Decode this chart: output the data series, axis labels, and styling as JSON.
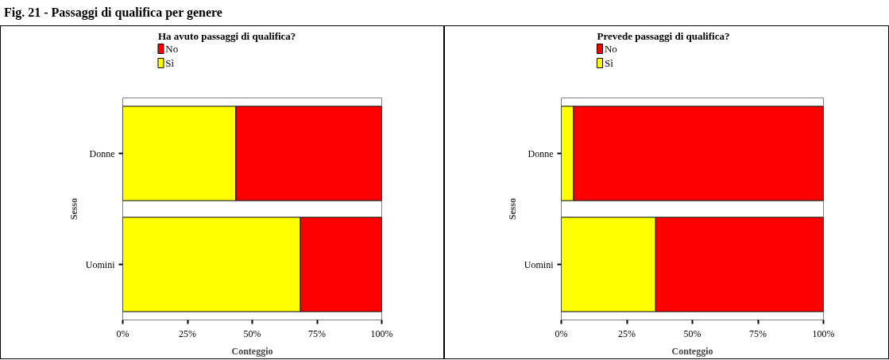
{
  "chart_data": [
    {
      "type": "bar",
      "title": "Fig. 21 - Passaggi di qualifica per genere",
      "orientation": "horizontal",
      "stacked": true,
      "legend_title": "Ha avuto passaggi di qualifica?",
      "legend": "top left",
      "categories": [
        "Donne",
        "Uomini"
      ],
      "xlabel": "Conteggio",
      "ylabel": "Sesso",
      "xlim": [
        0,
        100
      ],
      "xticks": [
        {
          "value": 0,
          "label": "0%"
        },
        {
          "value": 25,
          "label": "25%"
        },
        {
          "value": 50,
          "label": "50%"
        },
        {
          "value": 75,
          "label": "75%"
        },
        {
          "value": 100,
          "label": "100%"
        }
      ],
      "grid": false,
      "series": [
        {
          "name": "Sì",
          "color": "#ffff00",
          "values": [
            43.7,
            68.6
          ]
        },
        {
          "name": "No",
          "color": "#ff0000",
          "values": [
            56.3,
            31.4
          ]
        }
      ]
    },
    {
      "type": "bar",
      "orientation": "horizontal",
      "stacked": true,
      "legend_title": "Prevede passaggi di qualifica?",
      "legend": "top left",
      "categories": [
        "Donne",
        "Uomini"
      ],
      "xlabel": "Conteggio",
      "ylabel": "Sesso",
      "xlim": [
        0,
        100
      ],
      "xticks": [
        {
          "value": 0,
          "label": "0%"
        },
        {
          "value": 25,
          "label": "25%"
        },
        {
          "value": 50,
          "label": "50%"
        },
        {
          "value": 75,
          "label": "75%"
        },
        {
          "value": 100,
          "label": "100%"
        }
      ],
      "grid": false,
      "series": [
        {
          "name": "Sì",
          "color": "#ffff00",
          "values": [
            4.7,
            36.0
          ]
        },
        {
          "name": "No",
          "color": "#ff0000",
          "values": [
            95.3,
            64.0
          ]
        }
      ]
    }
  ]
}
